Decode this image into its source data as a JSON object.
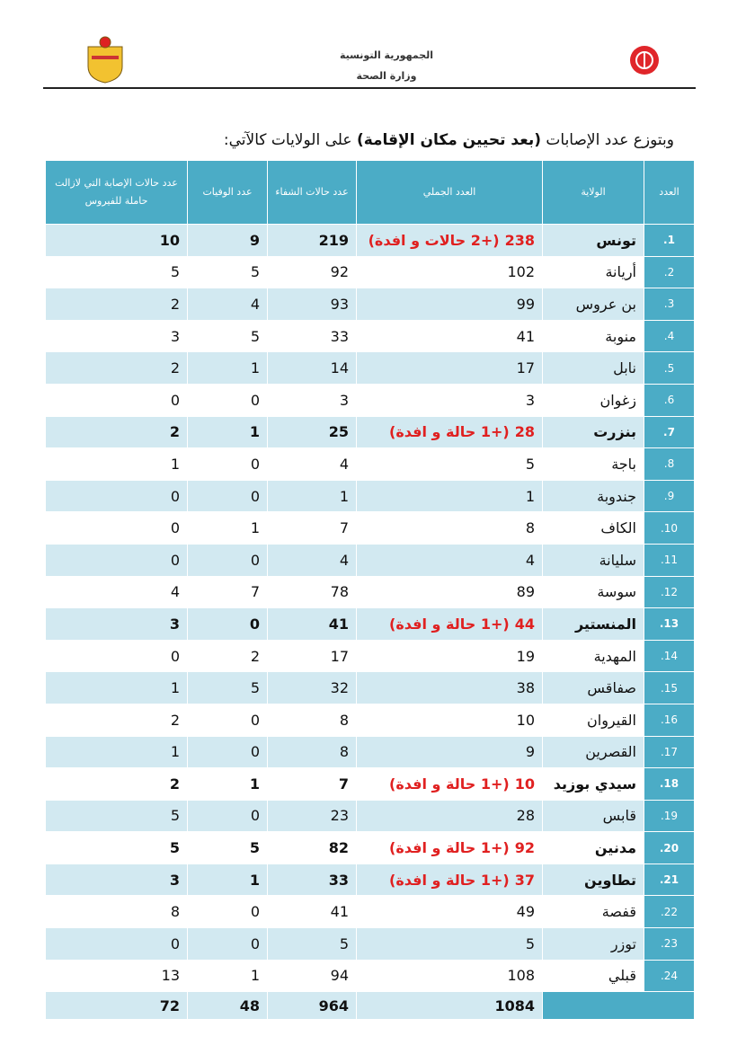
{
  "header": {
    "line1": "الجمهورية التونسية",
    "line2": "وزارة الصحة"
  },
  "title": {
    "part1": "وبتوزع عدد الإصابات",
    "part2": "(بعد تحيين مكان الإقامة)",
    "part3": "على الولايات كالآتي:"
  },
  "table": {
    "columns": [
      "العدد",
      "الولاية",
      "العدد الجملي",
      "عدد حالات الشفاء",
      "عدد الوفيات",
      "عدد حالات الإصابة التي لازالت حاملة للفيروس"
    ],
    "rows": [
      {
        "no": "1.",
        "gov": "تونس",
        "total": 238,
        "note": "(+2 حالات و افدة)",
        "recovered": 219,
        "deaths": 9,
        "active": 10
      },
      {
        "no": "2.",
        "gov": "أريانة",
        "total": 102,
        "recovered": 92,
        "deaths": 5,
        "active": 5
      },
      {
        "no": "3.",
        "gov": "بن عروس",
        "total": 99,
        "recovered": 93,
        "deaths": 4,
        "active": 2
      },
      {
        "no": "4.",
        "gov": "منوبة",
        "total": 41,
        "recovered": 33,
        "deaths": 5,
        "active": 3
      },
      {
        "no": "5.",
        "gov": "نابل",
        "total": 17,
        "recovered": 14,
        "deaths": 1,
        "active": 2
      },
      {
        "no": "6.",
        "gov": "زغوان",
        "total": 3,
        "recovered": 3,
        "deaths": 0,
        "active": 0
      },
      {
        "no": "7.",
        "gov": "بنزرت",
        "total": 28,
        "note": "(+1 حالة و افدة)",
        "recovered": 25,
        "deaths": 1,
        "active": 2
      },
      {
        "no": "8.",
        "gov": "باجة",
        "total": 5,
        "recovered": 4,
        "deaths": 0,
        "active": 1
      },
      {
        "no": "9.",
        "gov": "جندوبة",
        "total": 1,
        "recovered": 1,
        "deaths": 0,
        "active": 0
      },
      {
        "no": "10.",
        "gov": "الكاف",
        "total": 8,
        "recovered": 7,
        "deaths": 1,
        "active": 0
      },
      {
        "no": "11.",
        "gov": "سليانة",
        "total": 4,
        "recovered": 4,
        "deaths": 0,
        "active": 0
      },
      {
        "no": "12.",
        "gov": "سوسة",
        "total": 89,
        "recovered": 78,
        "deaths": 7,
        "active": 4
      },
      {
        "no": "13.",
        "gov": "المنستير",
        "total": 44,
        "note": "(+1 حالة و افدة)",
        "recovered": 41,
        "deaths": 0,
        "active": 3
      },
      {
        "no": "14.",
        "gov": "المهدية",
        "total": 19,
        "recovered": 17,
        "deaths": 2,
        "active": 0
      },
      {
        "no": "15.",
        "gov": "صفاقس",
        "total": 38,
        "recovered": 32,
        "deaths": 5,
        "active": 1
      },
      {
        "no": "16.",
        "gov": "القيروان",
        "total": 10,
        "recovered": 8,
        "deaths": 0,
        "active": 2
      },
      {
        "no": "17.",
        "gov": "القصرين",
        "total": 9,
        "recovered": 8,
        "deaths": 0,
        "active": 1
      },
      {
        "no": "18.",
        "gov": "سيدي بوزيد",
        "total": 10,
        "note": "(+1 حالة و افدة)",
        "recovered": 7,
        "deaths": 1,
        "active": 2
      },
      {
        "no": "19.",
        "gov": "قابس",
        "total": 28,
        "recovered": 23,
        "deaths": 0,
        "active": 5
      },
      {
        "no": "20.",
        "gov": "مدنين",
        "total": 92,
        "note": "(+1 حالة و افدة)",
        "recovered": 82,
        "deaths": 5,
        "active": 5
      },
      {
        "no": "21.",
        "gov": "تطاوين",
        "total": 37,
        "note": "(+1 حالة و افدة)",
        "recovered": 33,
        "deaths": 1,
        "active": 3
      },
      {
        "no": "22.",
        "gov": "قفصة",
        "total": 49,
        "recovered": 41,
        "deaths": 0,
        "active": 8
      },
      {
        "no": "23.",
        "gov": "توزر",
        "total": 5,
        "recovered": 5,
        "deaths": 0,
        "active": 0
      },
      {
        "no": "24.",
        "gov": "قبلي",
        "total": 108,
        "recovered": 94,
        "deaths": 1,
        "active": 13
      }
    ],
    "totals": {
      "total": 1084,
      "recovered": 964,
      "deaths": 48,
      "active": 72
    }
  }
}
